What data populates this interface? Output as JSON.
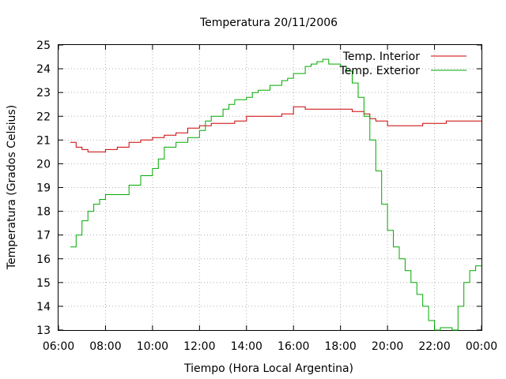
{
  "chart_data": {
    "type": "line",
    "title": "Temperatura 20/11/2006",
    "xlabel": "Tiempo (Hora Local Argentina)",
    "ylabel": "Temperatura (Grados Celsius)",
    "xlim": [
      "06:00",
      "00:00"
    ],
    "ylim": [
      13,
      25
    ],
    "x_ticks": [
      "06:00",
      "08:00",
      "10:00",
      "12:00",
      "14:00",
      "16:00",
      "18:00",
      "20:00",
      "22:00",
      "00:00"
    ],
    "y_ticks": [
      "13",
      "14",
      "15",
      "16",
      "17",
      "18",
      "19",
      "20",
      "21",
      "22",
      "23",
      "24",
      "25"
    ],
    "grid": true,
    "legend_position": "top-right",
    "series": [
      {
        "name": "Temp. Interior",
        "color": "#cc0000",
        "x": [
          "06:30",
          "06:45",
          "07:00",
          "07:15",
          "07:30",
          "07:45",
          "08:00",
          "08:30",
          "09:00",
          "09:30",
          "10:00",
          "10:30",
          "11:00",
          "11:30",
          "12:00",
          "12:30",
          "13:00",
          "13:30",
          "14:00",
          "14:30",
          "15:00",
          "15:30",
          "15:45",
          "16:00",
          "16:30",
          "17:00",
          "17:30",
          "18:00",
          "18:30",
          "19:00",
          "19:15",
          "19:30",
          "20:00",
          "20:30",
          "21:00",
          "21:30",
          "22:00",
          "22:30",
          "23:00",
          "23:30",
          "00:00"
        ],
        "y": [
          20.9,
          20.7,
          20.6,
          20.5,
          20.5,
          20.5,
          20.6,
          20.7,
          20.9,
          21.0,
          21.1,
          21.2,
          21.3,
          21.5,
          21.6,
          21.7,
          21.7,
          21.8,
          22.0,
          22.0,
          22.0,
          22.1,
          22.1,
          22.4,
          22.3,
          22.3,
          22.3,
          22.3,
          22.2,
          22.1,
          21.9,
          21.8,
          21.6,
          21.6,
          21.6,
          21.7,
          21.7,
          21.8,
          21.8,
          21.8,
          21.8
        ]
      },
      {
        "name": "Temp. Exterior",
        "color": "#00aa00",
        "x": [
          "06:30",
          "06:45",
          "07:00",
          "07:15",
          "07:30",
          "07:45",
          "08:00",
          "08:15",
          "08:30",
          "09:00",
          "09:30",
          "10:00",
          "10:15",
          "10:30",
          "11:00",
          "11:30",
          "12:00",
          "12:15",
          "12:30",
          "13:00",
          "13:15",
          "13:30",
          "14:00",
          "14:15",
          "14:30",
          "15:00",
          "15:30",
          "15:45",
          "16:00",
          "16:30",
          "16:45",
          "17:00",
          "17:15",
          "17:30",
          "18:00",
          "18:15",
          "18:30",
          "18:45",
          "19:00",
          "19:15",
          "19:30",
          "19:45",
          "20:00",
          "20:15",
          "20:30",
          "20:45",
          "21:00",
          "21:15",
          "21:30",
          "21:45",
          "22:00",
          "22:15",
          "22:30",
          "22:45",
          "23:00",
          "23:15",
          "23:30",
          "23:45",
          "00:00"
        ],
        "y": [
          16.5,
          17.0,
          17.6,
          18.0,
          18.3,
          18.5,
          18.7,
          18.7,
          18.7,
          19.1,
          19.5,
          19.8,
          20.2,
          20.7,
          20.9,
          21.1,
          21.4,
          21.8,
          22.0,
          22.3,
          22.5,
          22.7,
          22.8,
          23.0,
          23.1,
          23.3,
          23.5,
          23.6,
          23.8,
          24.1,
          24.2,
          24.3,
          24.4,
          24.2,
          24.1,
          23.9,
          23.4,
          22.8,
          22.0,
          21.0,
          19.7,
          18.3,
          17.2,
          16.5,
          16.0,
          15.5,
          15.0,
          14.5,
          14.0,
          13.4,
          13.0,
          13.1,
          13.1,
          13.0,
          14.0,
          15.0,
          15.5,
          15.7,
          15.7
        ]
      }
    ]
  }
}
